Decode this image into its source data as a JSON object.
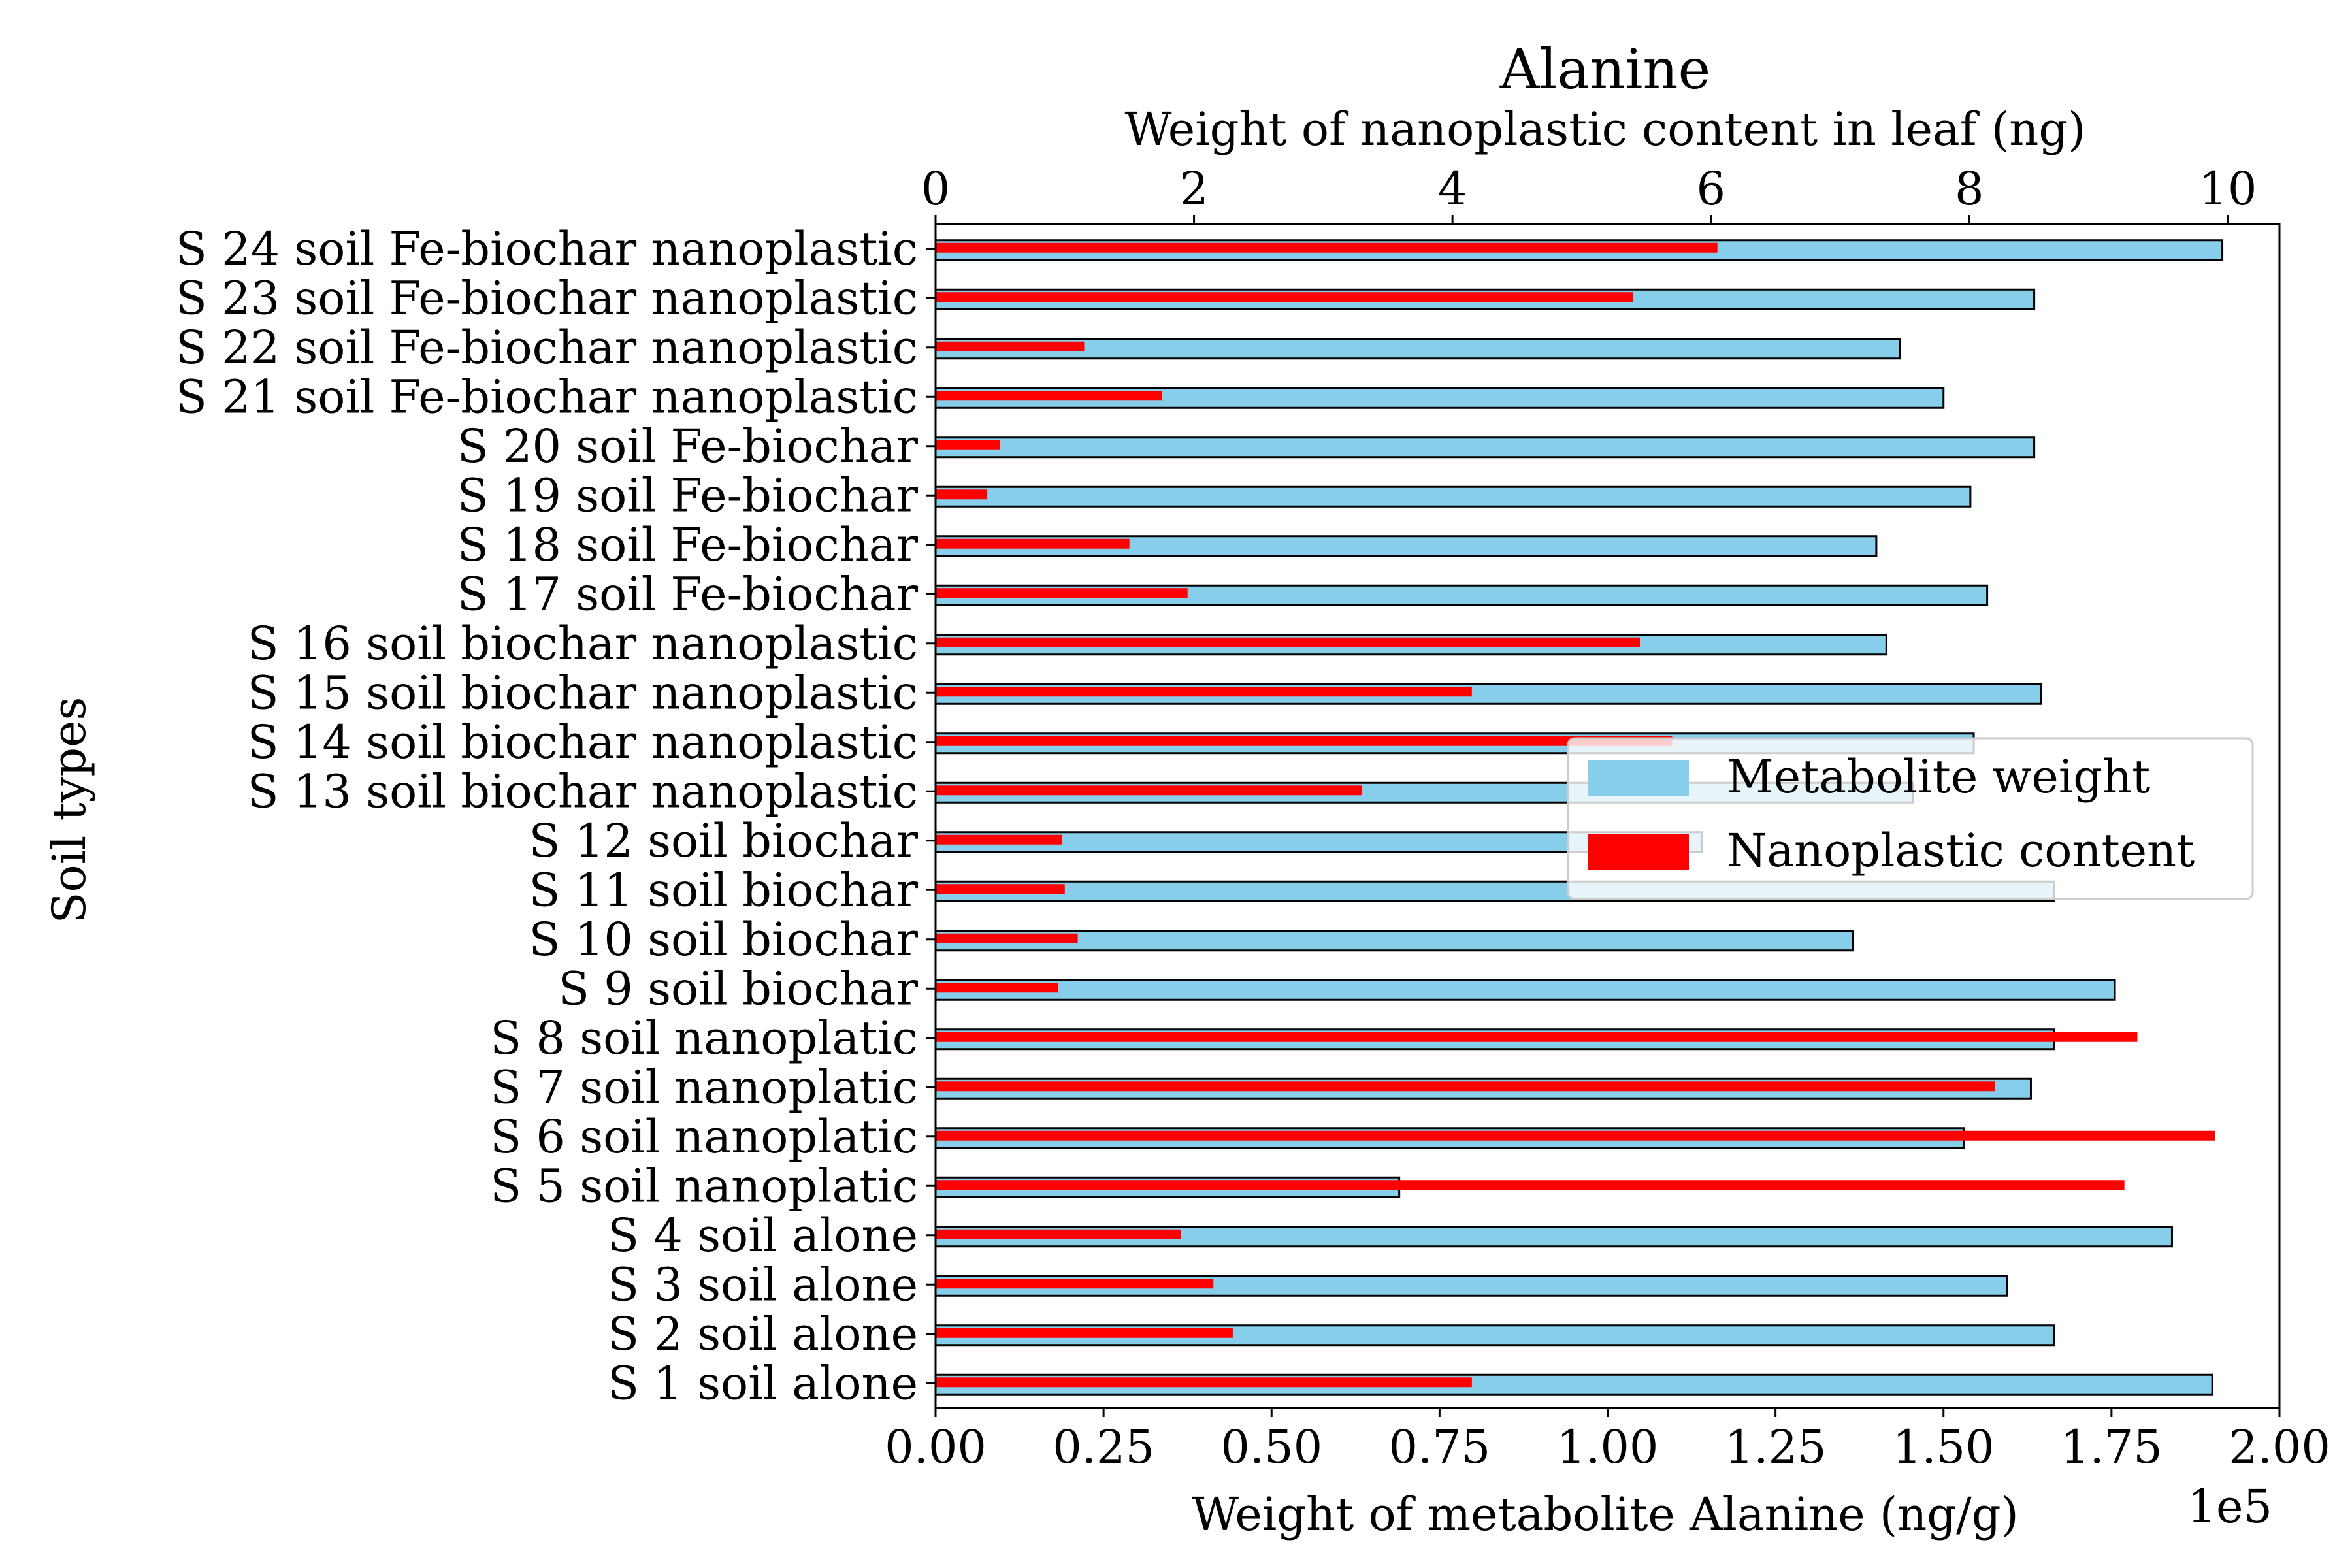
{
  "chart_data": {
    "type": "bar",
    "orientation": "horizontal",
    "title": "Alanine",
    "title_color": "#a52a2a",
    "ylabel": "Soil types",
    "xlabel": "Weight of metabolite Alanine (ng/g)",
    "x_offset_text": "1e5",
    "x_top_label": "Weight of nanoplastic content in leaf (ng)",
    "xlim": [
      0,
      200000
    ],
    "x_top_lim": [
      0,
      10.4
    ],
    "x_ticks": [
      "0.00",
      "0.25",
      "0.50",
      "0.75",
      "1.00",
      "1.25",
      "1.50",
      "1.75",
      "2.00"
    ],
    "x_top_ticks": [
      "0",
      "2",
      "4",
      "6",
      "8",
      "10"
    ],
    "grid": false,
    "legend_position": "center-right",
    "categories": [
      "S 1 soil alone",
      "S 2 soil alone",
      "S 3 soil alone",
      "S 4 soil alone",
      "S 5 soil nanoplatic",
      "S 6 soil nanoplatic",
      "S 7 soil nanoplatic",
      "S 8 soil nanoplatic",
      "S 9 soil biochar",
      "S 10 soil biochar",
      "S 11 soil biochar",
      "S 12 soil biochar",
      "S 13 soil biochar nanoplastic",
      "S 14 soil biochar nanoplastic",
      "S 15 soil biochar nanoplastic",
      "S 16 soil biochar nanoplastic",
      "S 17 soil Fe-biochar",
      "S 18 soil Fe-biochar",
      "S 19 soil Fe-biochar",
      "S 20 soil Fe-biochar",
      "S 21 soil Fe-biochar nanoplastic",
      "S 22 soil Fe-biochar nanoplastic",
      "S 23 soil Fe-biochar nanoplastic",
      "S 24 soil Fe-biochar nanoplastic"
    ],
    "series": [
      {
        "name": "Metabolite weight",
        "axis": "bottom",
        "color": "#87ceeb",
        "edge_color": "#000000",
        "values": [
          190000,
          166500,
          159500,
          184000,
          69000,
          153000,
          163000,
          166500,
          175500,
          136500,
          166500,
          114000,
          145500,
          154500,
          164500,
          141500,
          156500,
          140000,
          154000,
          163500,
          150000,
          143500,
          163500,
          191500
        ]
      },
      {
        "name": "Nanoplastic content",
        "axis": "top",
        "color": "#ff0000",
        "values": [
          4.15,
          2.3,
          2.15,
          1.9,
          9.2,
          9.9,
          8.2,
          9.3,
          0.95,
          1.1,
          1.0,
          0.98,
          3.3,
          5.7,
          4.15,
          5.45,
          1.95,
          1.5,
          0.4,
          0.5,
          1.75,
          1.15,
          5.4,
          6.05
        ]
      }
    ]
  }
}
